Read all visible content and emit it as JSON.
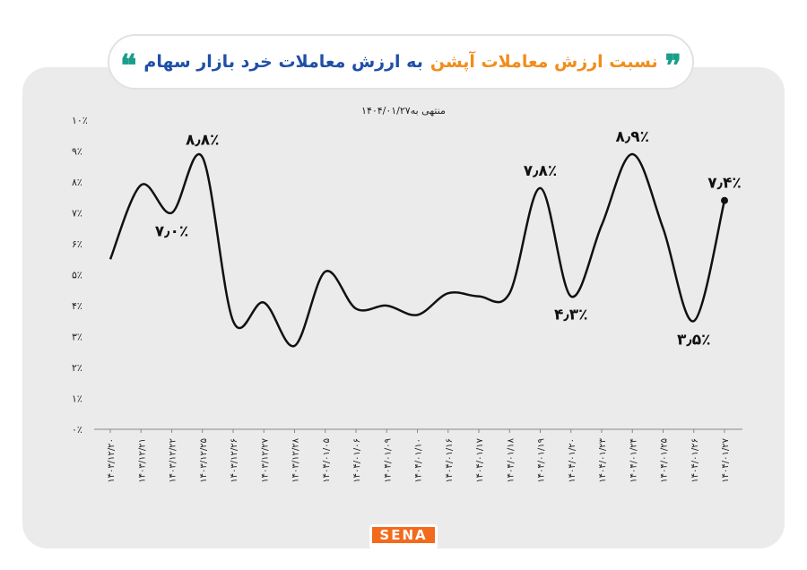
{
  "chart_data": {
    "type": "line",
    "title_part1": "نسبت ارزش معاملات آپشن",
    "title_part2": "به ارزش معاملات خرد بازار سهام",
    "subtitle": "منتهی به۱۴۰۴/۰۱/۲۷",
    "categories": [
      "۱۴۰۳/۱۲/۲۰",
      "۱۴۰۳/۱۲/۲۱",
      "۱۴۰۳/۱۲/۲۲",
      "۱۴۰۳/۱۲/۲۵",
      "۱۴۰۳/۱۲/۲۶",
      "۱۴۰۳/۱۲/۲۷",
      "۱۴۰۳/۱۲/۲۸",
      "۱۴۰۴/۰۱/۰۵",
      "۱۴۰۴/۰۱/۰۶",
      "۱۴۰۴/۰۱/۰۹",
      "۱۴۰۴/۰۱/۱۰",
      "۱۴۰۴/۰۱/۱۶",
      "۱۴۰۴/۰۱/۱۷",
      "۱۴۰۴/۰۱/۱۸",
      "۱۴۰۴/۰۱/۱۹",
      "۱۴۰۴/۰۱/۲۰",
      "۱۴۰۴/۰۱/۲۳",
      "۱۴۰۴/۰۱/۲۴",
      "۱۴۰۴/۰۱/۲۵",
      "۱۴۰۴/۰۱/۲۶",
      "۱۴۰۴/۰۱/۲۷"
    ],
    "values": [
      5.5,
      7.9,
      7.0,
      8.8,
      3.5,
      4.1,
      2.7,
      5.1,
      3.9,
      4.0,
      3.7,
      4.4,
      4.3,
      4.4,
      7.8,
      4.3,
      6.6,
      8.9,
      6.5,
      3.5,
      7.4
    ],
    "yticks": [
      "۰٪",
      "۱٪",
      "۲٪",
      "۳٪",
      "۴٪",
      "۵٪",
      "۶٪",
      "۷٪",
      "۸٪",
      "۹٪",
      "۱۰٪"
    ],
    "ylim": [
      0,
      10
    ],
    "grid": false,
    "annotations": [
      {
        "index": 3,
        "label": "۸٫۸٪",
        "pos": "above"
      },
      {
        "index": 2,
        "label": "۷٫۰٪",
        "pos": "below"
      },
      {
        "index": 14,
        "label": "۷٫۸٪",
        "pos": "above"
      },
      {
        "index": 15,
        "label": "۴٫۳٪",
        "pos": "below"
      },
      {
        "index": 17,
        "label": "۸٫۹٪",
        "pos": "above"
      },
      {
        "index": 19,
        "label": "۳٫۵٪",
        "pos": "below"
      },
      {
        "index": 20,
        "label": "۷٫۴٪",
        "pos": "above"
      }
    ],
    "line_color": "#111111"
  },
  "logo": {
    "text": "SENA",
    "color": "#f26b1d"
  },
  "colors": {
    "title_highlight": "#f28c1a",
    "title_main": "#1f4fa8",
    "quote": "#1a9e8a"
  }
}
